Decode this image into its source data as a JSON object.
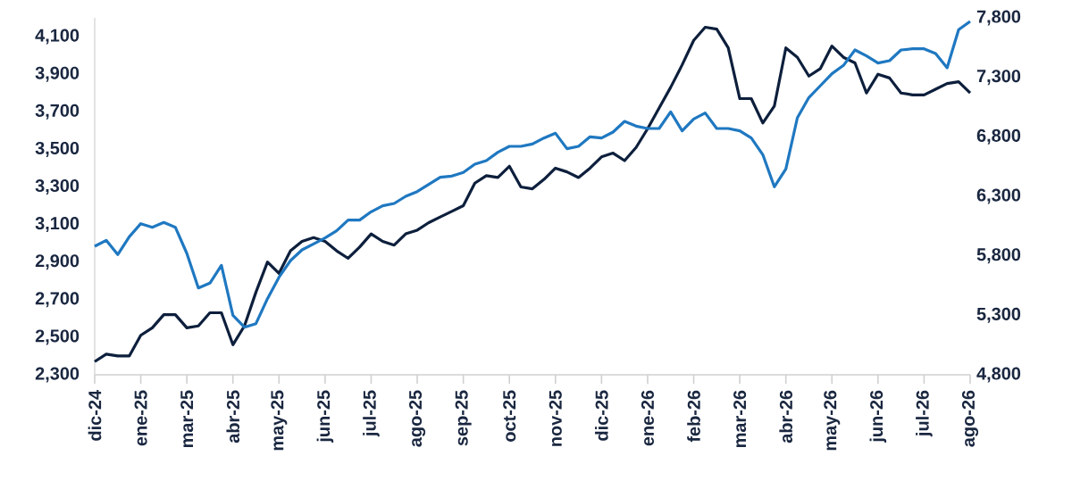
{
  "chart_data": {
    "type": "line",
    "categories": [
      "dic-24",
      null,
      null,
      null,
      "ene-25",
      null,
      null,
      null,
      "mar-25",
      null,
      null,
      null,
      "abr-25",
      null,
      null,
      null,
      "may-25",
      null,
      null,
      null,
      "jun-25",
      null,
      null,
      null,
      "jul-25",
      null,
      null,
      null,
      "ago-25",
      null,
      null,
      null,
      "sep-25",
      null,
      null,
      null,
      "oct-25",
      null,
      null,
      null,
      "nov-25",
      null,
      null,
      null,
      "dic-25",
      null,
      null,
      null,
      "ene-26",
      null,
      null,
      null,
      "feb-26",
      null,
      null,
      null,
      "mar-26",
      null,
      null,
      null,
      "abr-26",
      null,
      null,
      null,
      "may-26",
      null,
      null,
      null,
      "jun-26",
      null,
      null,
      null,
      "jul-26",
      null,
      null,
      null,
      "ago-26"
    ],
    "ylim": [
      2300,
      4200
    ],
    "yticks": [
      {
        "value": 2300,
        "label": "2,300"
      },
      {
        "value": 2500,
        "label": "2,500"
      },
      {
        "value": 2700,
        "label": "2,700"
      },
      {
        "value": 2900,
        "label": "2,900"
      },
      {
        "value": 3100,
        "label": "3,100"
      },
      {
        "value": 3300,
        "label": "3,300"
      },
      {
        "value": 3500,
        "label": "3,500"
      },
      {
        "value": 3700,
        "label": "3,700"
      },
      {
        "value": 3900,
        "label": "3,900"
      },
      {
        "value": 4100,
        "label": "4,100"
      }
    ],
    "y2lim": [
      4800,
      7800
    ],
    "y2ticks": [
      {
        "value": 4800,
        "label": "4,800"
      },
      {
        "value": 5300,
        "label": "5,300"
      },
      {
        "value": 5800,
        "label": "5,800"
      },
      {
        "value": 6300,
        "label": "6,300"
      },
      {
        "value": 6800,
        "label": "6,800"
      },
      {
        "value": 7300,
        "label": "7,300"
      },
      {
        "value": 7800,
        "label": "7,800"
      }
    ],
    "series": [
      {
        "color": "#0d1f3c",
        "axis": "y",
        "values": [
          2370,
          2410,
          2400,
          2400,
          2510,
          2550,
          2620,
          2620,
          2550,
          2560,
          2630,
          2630,
          2460,
          2560,
          2740,
          2900,
          2840,
          2960,
          3010,
          3030,
          3010,
          2960,
          2920,
          2980,
          3050,
          3010,
          2990,
          3050,
          3070,
          3110,
          3140,
          3170,
          3200,
          3320,
          3360,
          3350,
          3410,
          3300,
          3290,
          3340,
          3400,
          3380,
          3350,
          3400,
          3460,
          3480,
          3440,
          3510,
          3610,
          3720,
          3830,
          3950,
          4080,
          4150,
          4140,
          4040,
          3770,
          3770,
          3640,
          3730,
          4040,
          3990,
          3890,
          3930,
          4050,
          3990,
          3960,
          3800,
          3900,
          3880,
          3800,
          3790,
          3790,
          3820,
          3850,
          3860,
          3800
        ]
      },
      {
        "color": "#1f78c1",
        "axis": "y2",
        "values": [
          5880,
          5930,
          5810,
          5960,
          6070,
          6040,
          6080,
          6040,
          5820,
          5530,
          5570,
          5720,
          5300,
          5200,
          5230,
          5440,
          5620,
          5760,
          5850,
          5900,
          5950,
          6010,
          6100,
          6100,
          6170,
          6220,
          6240,
          6300,
          6340,
          6400,
          6460,
          6470,
          6500,
          6570,
          6600,
          6670,
          6720,
          6720,
          6740,
          6790,
          6830,
          6700,
          6720,
          6800,
          6790,
          6840,
          6930,
          6890,
          6870,
          6870,
          7010,
          6850,
          6950,
          7000,
          6870,
          6870,
          6850,
          6790,
          6650,
          6380,
          6530,
          6960,
          7130,
          7230,
          7330,
          7400,
          7530,
          7480,
          7420,
          7440,
          7530,
          7540,
          7540,
          7500,
          7380,
          7700,
          7770
        ]
      }
    ]
  }
}
